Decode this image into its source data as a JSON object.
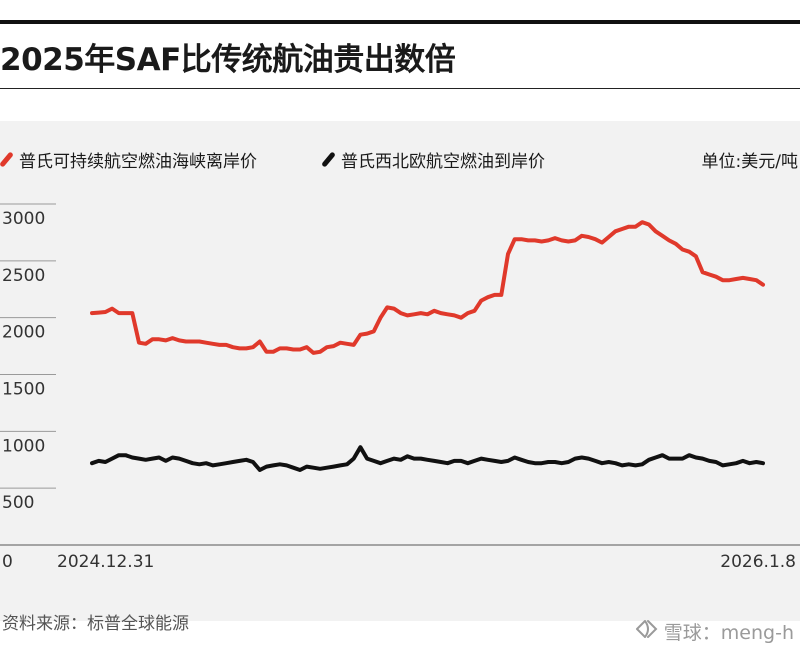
{
  "header": {
    "title": "2025年SAF比传统航油贵出数倍"
  },
  "legend": {
    "unit": "单位:美元/吨"
  },
  "source": "资料来源：标普全球能源",
  "watermark": {
    "text": "雪球：meng-h",
    "logo_icon": "xueqiu-logo-icon"
  },
  "colors": {
    "saf": "#e0392b",
    "jet": "#111111",
    "background": "#f2f2f2",
    "grid": "#9a9a9a"
  },
  "chart_data": {
    "type": "line",
    "title": "2025年SAF比传统航油贵出数倍",
    "ylabel": "单位:美元/吨",
    "x_start_label": "2024.12.31",
    "x_end_label": "2026.1.8",
    "ylim": [
      0,
      3000
    ],
    "yticks": [
      0,
      500,
      1000,
      1500,
      2000,
      2500,
      3000
    ],
    "x_range": [
      0,
      100
    ],
    "grid": "horizontal",
    "legend_position": "top-left",
    "series": [
      {
        "name": "普氏可持续航空燃油海峡离岸价",
        "color": "#e0392b",
        "x": [
          0,
          1,
          2,
          3,
          4,
          5,
          6,
          7,
          8,
          9,
          10,
          11,
          12,
          13,
          14,
          15,
          16,
          17,
          18,
          19,
          20,
          21,
          22,
          23,
          24,
          25,
          26,
          27,
          28,
          29,
          30,
          31,
          32,
          33,
          34,
          35,
          36,
          37,
          38,
          39,
          40,
          41,
          42,
          43,
          44,
          45,
          46,
          47,
          48,
          49,
          50,
          51,
          52,
          53,
          54,
          55,
          56,
          57,
          58,
          59,
          60,
          61,
          62,
          63,
          64,
          65,
          66,
          67,
          68,
          69,
          70,
          71,
          72,
          73,
          74,
          75,
          76,
          77,
          78,
          79,
          80,
          81,
          82,
          83,
          84,
          85,
          86,
          87,
          88,
          89,
          90,
          91,
          92,
          93,
          94,
          95,
          96,
          97,
          98,
          99,
          100
        ],
        "values": [
          2040,
          2045,
          2050,
          2080,
          2040,
          2040,
          2040,
          1780,
          1770,
          1810,
          1810,
          1800,
          1820,
          1800,
          1790,
          1790,
          1790,
          1780,
          1770,
          1760,
          1760,
          1740,
          1730,
          1730,
          1740,
          1790,
          1700,
          1700,
          1730,
          1730,
          1720,
          1720,
          1740,
          1690,
          1700,
          1740,
          1750,
          1780,
          1770,
          1760,
          1850,
          1860,
          1880,
          2000,
          2090,
          2080,
          2040,
          2020,
          2030,
          2040,
          2030,
          2060,
          2040,
          2030,
          2020,
          2000,
          2040,
          2060,
          2150,
          2180,
          2200,
          2200,
          2560,
          2690,
          2690,
          2680,
          2680,
          2670,
          2680,
          2700,
          2680,
          2670,
          2680,
          2720,
          2710,
          2690,
          2660,
          2710,
          2760,
          2780,
          2800,
          2800,
          2840,
          2820,
          2760,
          2720,
          2680,
          2650,
          2600,
          2580,
          2540,
          2400,
          2380,
          2360,
          2330,
          2330,
          2340,
          2350,
          2340,
          2330,
          2290
        ]
      },
      {
        "name": "普氏西北欧航空燃油到岸价",
        "color": "#111111",
        "x": [
          0,
          1,
          2,
          3,
          4,
          5,
          6,
          7,
          8,
          9,
          10,
          11,
          12,
          13,
          14,
          15,
          16,
          17,
          18,
          19,
          20,
          21,
          22,
          23,
          24,
          25,
          26,
          27,
          28,
          29,
          30,
          31,
          32,
          33,
          34,
          35,
          36,
          37,
          38,
          39,
          40,
          41,
          42,
          43,
          44,
          45,
          46,
          47,
          48,
          49,
          50,
          51,
          52,
          53,
          54,
          55,
          56,
          57,
          58,
          59,
          60,
          61,
          62,
          63,
          64,
          65,
          66,
          67,
          68,
          69,
          70,
          71,
          72,
          73,
          74,
          75,
          76,
          77,
          78,
          79,
          80,
          81,
          82,
          83,
          84,
          85,
          86,
          87,
          88,
          89,
          90,
          91,
          92,
          93,
          94,
          95,
          96,
          97,
          98,
          99,
          100
        ],
        "values": [
          720,
          740,
          730,
          760,
          790,
          790,
          770,
          760,
          750,
          760,
          770,
          740,
          770,
          760,
          740,
          720,
          710,
          720,
          700,
          710,
          720,
          730,
          740,
          750,
          730,
          660,
          690,
          700,
          710,
          700,
          680,
          660,
          690,
          680,
          670,
          680,
          690,
          700,
          710,
          760,
          860,
          760,
          740,
          720,
          740,
          760,
          750,
          780,
          760,
          760,
          750,
          740,
          730,
          720,
          740,
          740,
          720,
          740,
          760,
          750,
          740,
          730,
          740,
          770,
          750,
          730,
          720,
          720,
          730,
          730,
          720,
          730,
          760,
          770,
          760,
          740,
          720,
          730,
          720,
          700,
          710,
          700,
          710,
          750,
          770,
          790,
          760,
          760,
          760,
          790,
          770,
          760,
          740,
          730,
          700,
          710,
          720,
          740,
          720,
          730,
          720
        ]
      }
    ]
  }
}
